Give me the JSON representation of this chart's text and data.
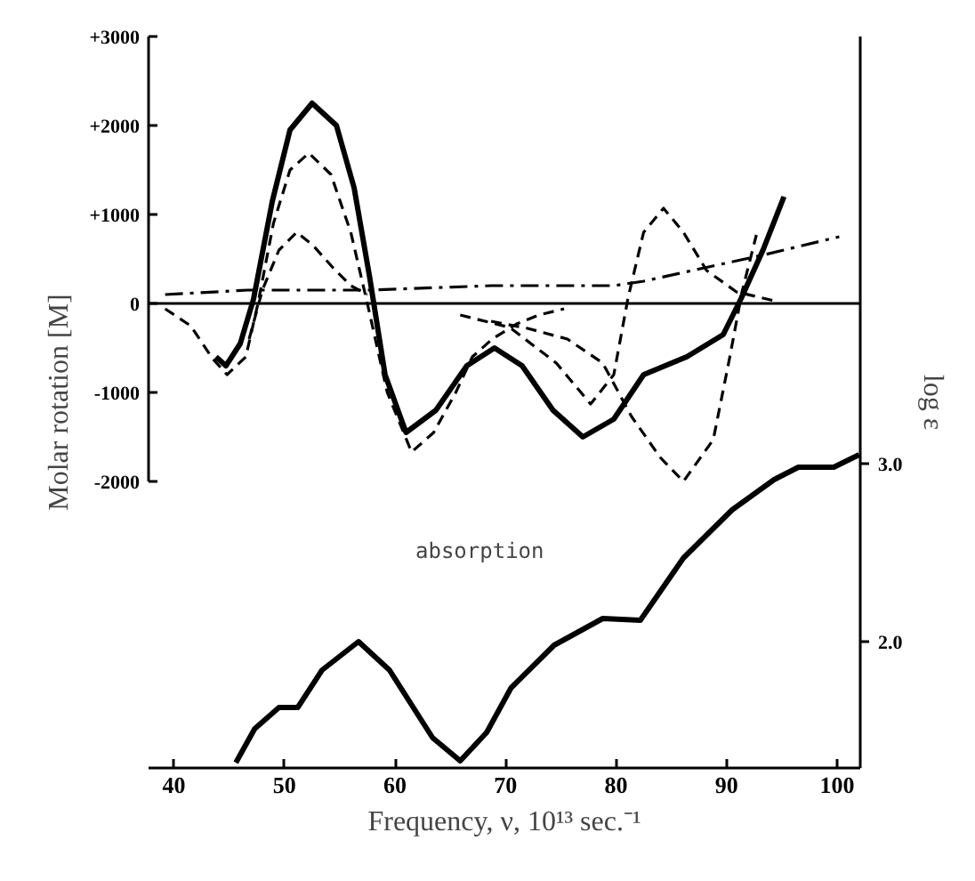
{
  "chart_data": {
    "type": "line",
    "xlabel": "Frequency, ν, 10¹³ sec.⁻¹",
    "ylabel": "Molar rotation [M]",
    "y2label": "log ε",
    "annotations": [
      "absorption"
    ],
    "xlim": [
      37.7,
      102.1
    ],
    "xticks": [
      40,
      50,
      60,
      70,
      80,
      90,
      100
    ],
    "ylim": [
      -5220,
      3000
    ],
    "yticks": [
      {
        "value": -2000,
        "label": "-2000"
      },
      {
        "value": -1000,
        "label": "-1000"
      },
      0,
      {
        "value": 1000,
        "label": "+1000"
      },
      {
        "value": 2000,
        "label": "+2000"
      },
      {
        "value": 3000,
        "label": "+3000"
      }
    ],
    "y2lim": [
      1.29,
      5.4
    ],
    "y2ticks": [
      {
        "value": 2,
        "label": "2.0"
      },
      {
        "value": 3,
        "label": "3.0"
      }
    ],
    "grid": false,
    "marker": "none",
    "ref_lines": [
      {
        "axis": "y",
        "value": 0,
        "label": null,
        "color": "#000000",
        "line_style": "solid"
      }
    ],
    "series": [
      {
        "color": "#000000",
        "line_style": "solid",
        "x": [
          43.8,
          44.7,
          46,
          47.2,
          48.9,
          50.5,
          52.5,
          54.7,
          56.3,
          57.7,
          59.1,
          61.0,
          63.7,
          66.5,
          69.0,
          71.5,
          74.3,
          77.0,
          79.8,
          82.5,
          86.4,
          89.7,
          91.3,
          93.3,
          95.2
        ],
        "values": [
          -600,
          -700,
          -450,
          50,
          1150,
          1950,
          2250,
          2000,
          1300,
          300,
          -800,
          -1450,
          -1200,
          -700,
          -500,
          -700,
          -1200,
          -1500,
          -1300,
          -800,
          -600,
          -350,
          50,
          600,
          1200
        ]
      },
      {
        "color": "#000000",
        "line_style": "dashed",
        "x": [
          39.2,
          41.5,
          43.5,
          44.8,
          46.5,
          47.6,
          49,
          50.5,
          52.2,
          54.2,
          56,
          57.5,
          59.3,
          61.5,
          63.5,
          65.5,
          67,
          68.8,
          71,
          73,
          75.3
        ],
        "values": [
          -60,
          -250,
          -620,
          -800,
          -600,
          0,
          900,
          1500,
          1690,
          1450,
          800,
          0,
          -1000,
          -1670,
          -1450,
          -1000,
          -600,
          -400,
          -230,
          -130,
          -60
        ]
      },
      {
        "color": "#000000",
        "line_style": "dashed",
        "x": [
          46.8,
          48,
          49.5,
          51.1,
          52.6,
          54.4,
          56,
          57.5
        ],
        "values": [
          -400,
          150,
          600,
          800,
          650,
          400,
          200,
          100
        ]
      },
      {
        "color": "#000000",
        "line_style": "dashed",
        "x": [
          65.9,
          70.4,
          74.6,
          77.7,
          79.8,
          81.1,
          82.5,
          84.3,
          86.1,
          88.2,
          90.9,
          94.3
        ],
        "values": [
          -130,
          -270,
          -670,
          -1130,
          -800,
          70,
          800,
          1070,
          800,
          370,
          130,
          30
        ]
      },
      {
        "color": "#000000",
        "line_style": "dashed",
        "x": [
          68.7,
          72,
          75.6,
          78.8,
          81.4,
          84.0,
          86.1,
          88.8,
          90.3,
          91.4,
          92.7
        ],
        "values": [
          -200,
          -280,
          -400,
          -670,
          -1270,
          -1730,
          -2000,
          -1530,
          -600,
          130,
          770
        ]
      },
      {
        "color": "#000000",
        "line_style": "dashdot",
        "x": [
          39.2,
          46.7,
          57.7,
          68.7,
          79.8,
          82.5,
          88.0,
          93.5,
          100.2
        ],
        "values": [
          100,
          150,
          150,
          200,
          200,
          250,
          400,
          550,
          750
        ]
      },
      {
        "color": "#000000",
        "line_style": "solid",
        "axis": "y2",
        "x": [
          45.6,
          47.3,
          49.5,
          51.2,
          53.4,
          56.7,
          59.5,
          63.4,
          65.9,
          68.3,
          70.5,
          74.4,
          78.8,
          82.2,
          86.1,
          90.5,
          94.3,
          96.5,
          99.7,
          102.0
        ],
        "values": [
          1.32,
          1.51,
          1.63,
          1.63,
          1.84,
          2.0,
          1.84,
          1.46,
          1.33,
          1.49,
          1.74,
          1.98,
          2.13,
          2.12,
          2.47,
          2.74,
          2.91,
          2.98,
          2.98,
          3.05
        ]
      }
    ]
  }
}
